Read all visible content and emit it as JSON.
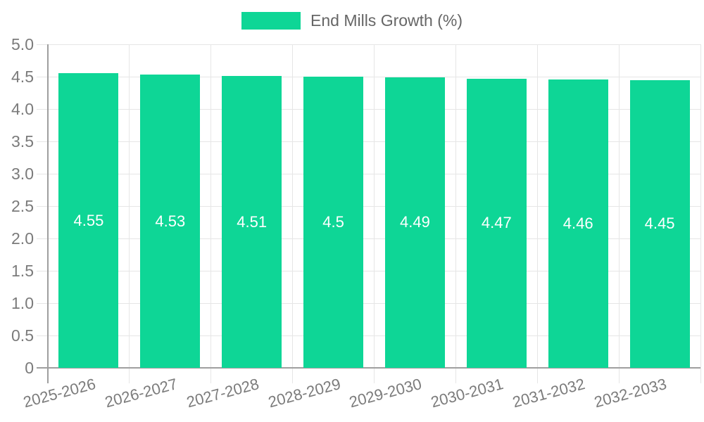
{
  "chart_data": {
    "type": "bar",
    "title": "End Mills Growth (%)",
    "legend": {
      "position": "top",
      "label": "End Mills Growth (%)",
      "swatch_color": "#0ed696"
    },
    "categories": [
      "2025-2026",
      "2026-2027",
      "2027-2028",
      "2028-2029",
      "2029-2030",
      "2030-2031",
      "2031-2032",
      "2032-2033"
    ],
    "series": [
      {
        "name": "End Mills Growth (%)",
        "values": [
          4.55,
          4.53,
          4.51,
          4.5,
          4.49,
          4.47,
          4.46,
          4.45
        ],
        "value_labels": [
          "4.55",
          "4.53",
          "4.51",
          "4.5",
          "4.49",
          "4.47",
          "4.46",
          "4.45"
        ]
      }
    ],
    "xlabel": "",
    "ylabel": "",
    "ylim": [
      0,
      5
    ],
    "ytick_labels": [
      "0",
      "0.5",
      "1.0",
      "1.5",
      "2.0",
      "2.5",
      "3.0",
      "3.5",
      "4.0",
      "4.5",
      "5.0"
    ],
    "grid": true,
    "x_label_rotation_deg": -15,
    "colors": {
      "bar": "#0ed696",
      "bar_value_text": "#ffffff",
      "axis_line": "#9f9f9f",
      "grid_line": "#e6e6e6",
      "tick_text": "#7b7b7b",
      "legend_text": "#666666"
    }
  }
}
